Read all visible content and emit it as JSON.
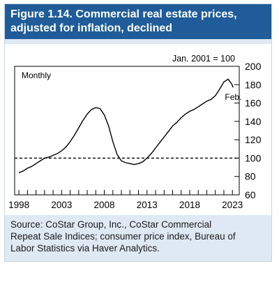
{
  "figure": {
    "title_line1": "Figure 1.14. Commercial real estate prices,",
    "title_line2": "adjusted for inflation, declined",
    "source_line1": "Source: CoStar Group, Inc., CoStar Commercial",
    "source_line2": "Repeat Sale Indices; consumer price index, Bureau of",
    "source_line3": "Labor Statistics via Haver Analytics.",
    "colors": {
      "title_bar": "#1f5c99",
      "frame": "#dfe9f4",
      "line": "#000000"
    }
  },
  "chart_data": {
    "type": "line",
    "unit_label": "Jan. 2001 = 100",
    "frequency_label": "Monthly",
    "end_annotation": "Feb.",
    "reference_line": {
      "y": 100,
      "style": "dashed"
    },
    "ylim": [
      60,
      200
    ],
    "yticks": [
      60,
      80,
      100,
      120,
      140,
      160,
      180,
      200
    ],
    "xlim": [
      1997.5,
      2023.8
    ],
    "xtick_labels": [
      "1998",
      "2003",
      "2008",
      "2013",
      "2018",
      "2023"
    ],
    "xtick_label_years": [
      1998,
      2003,
      2008,
      2013,
      2018,
      2023
    ],
    "grid": false,
    "series": [
      {
        "x": [
          1998.0,
          1998.5,
          1999.0,
          1999.5,
          2000.0,
          2000.5,
          2001.0,
          2001.5,
          2002.0,
          2002.5,
          2003.0,
          2003.5,
          2004.0,
          2004.5,
          2005.0,
          2005.5,
          2006.0,
          2006.5,
          2007.0,
          2007.5,
          2008.0,
          2008.5,
          2009.0,
          2009.5,
          2010.0,
          2010.5,
          2011.0,
          2011.5,
          2012.0,
          2012.5,
          2013.0,
          2013.5,
          2014.0,
          2014.5,
          2015.0,
          2015.5,
          2016.0,
          2016.5,
          2017.0,
          2017.5,
          2018.0,
          2018.5,
          2019.0,
          2019.5,
          2020.0,
          2020.5,
          2021.0,
          2021.5,
          2022.0,
          2022.5,
          2022.9,
          2023.1
        ],
        "y": [
          84,
          86,
          89,
          91,
          94,
          97,
          100,
          101,
          103,
          105,
          108,
          112,
          118,
          125,
          133,
          141,
          148,
          153,
          155,
          154,
          147,
          135,
          118,
          104,
          97,
          95,
          94,
          93,
          94,
          96,
          100,
          105,
          111,
          117,
          123,
          129,
          135,
          139,
          144,
          148,
          151,
          153,
          156,
          159,
          162,
          164,
          168,
          175,
          183,
          186,
          181,
          177
        ]
      }
    ]
  }
}
